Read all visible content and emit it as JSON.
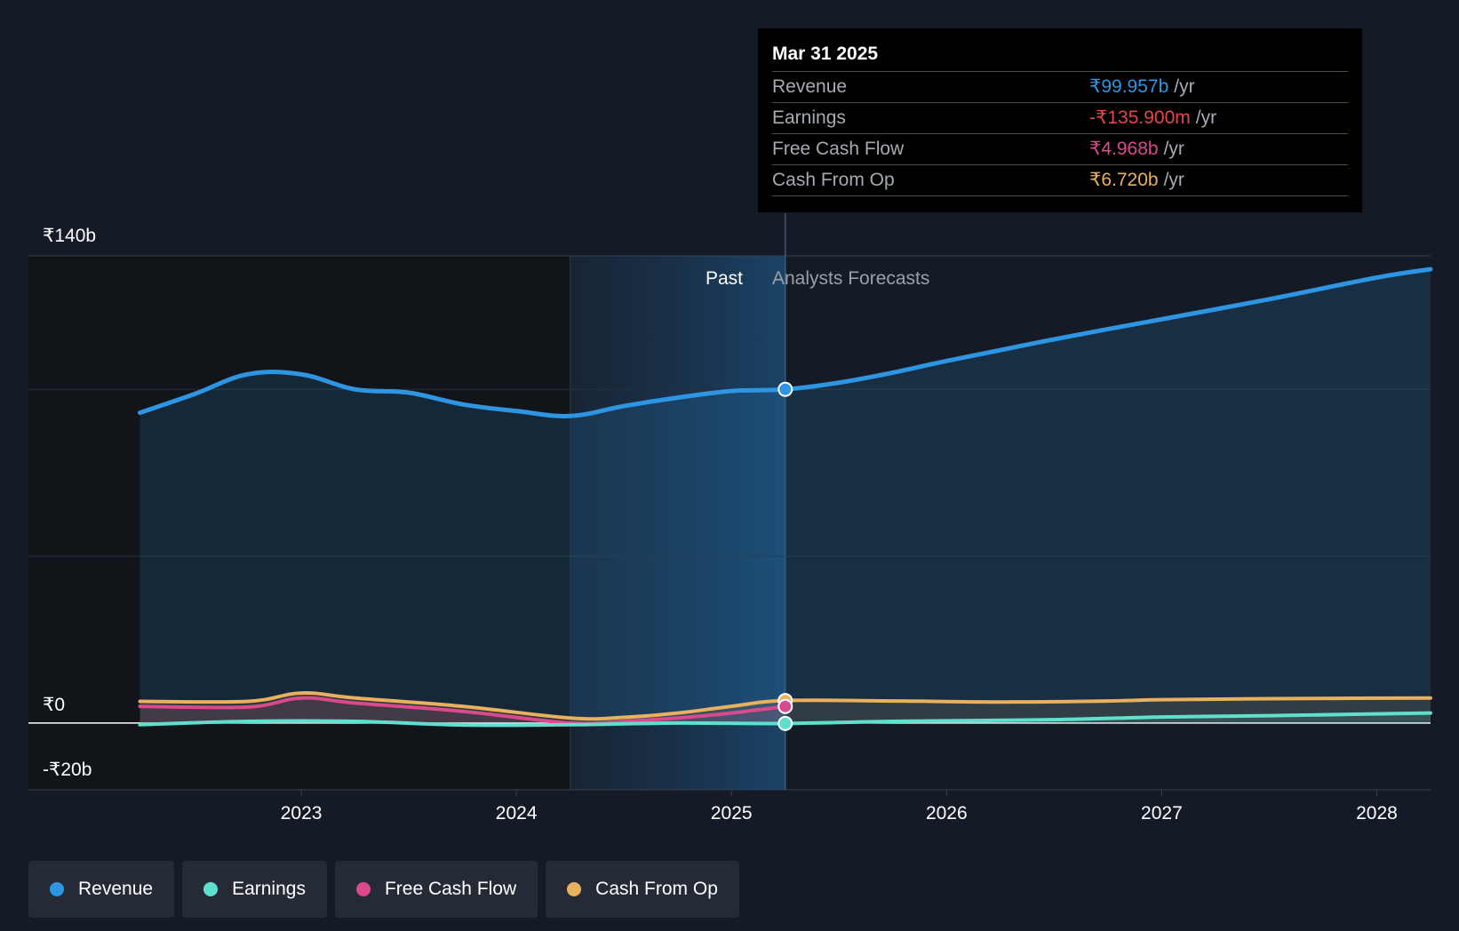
{
  "tooltip": {
    "date": "Mar 31 2025",
    "unit": "/yr",
    "rows": [
      {
        "label": "Revenue",
        "value": "₹99.957b",
        "color": "#2e95e3"
      },
      {
        "label": "Earnings",
        "value": "-₹135.900m",
        "color": "#e8444e"
      },
      {
        "label": "Free Cash Flow",
        "value": "₹4.968b",
        "color": "#d94a8c"
      },
      {
        "label": "Cash From Op",
        "value": "₹6.720b",
        "color": "#e9b05d"
      }
    ]
  },
  "labels": {
    "past": "Past",
    "forecast": "Analysts Forecasts"
  },
  "legend": [
    {
      "label": "Revenue",
      "color": "#2e95e3"
    },
    {
      "label": "Earnings",
      "color": "#5fe0cf"
    },
    {
      "label": "Free Cash Flow",
      "color": "#d94a8c"
    },
    {
      "label": "Cash From Op",
      "color": "#e9b05d"
    }
  ],
  "chart_data": {
    "type": "line",
    "xlim": [
      2022.0,
      2028.25
    ],
    "ylim": [
      -20,
      140
    ],
    "y_ticks": [
      {
        "value": 140,
        "label": "₹140b"
      },
      {
        "value": 0,
        "label": "₹0"
      },
      {
        "value": -20,
        "label": "-₹20b"
      }
    ],
    "x_ticks": [
      {
        "value": 2023,
        "label": "2023"
      },
      {
        "value": 2024,
        "label": "2024"
      },
      {
        "value": 2025,
        "label": "2025"
      },
      {
        "value": 2026,
        "label": "2026"
      },
      {
        "value": 2027,
        "label": "2027"
      },
      {
        "value": 2028,
        "label": "2028"
      }
    ],
    "gridlines": [
      140,
      100,
      50
    ],
    "past_start": 2024.25,
    "divider": 2025.25,
    "series": [
      {
        "name": "Revenue",
        "color": "#2e95e3",
        "points": [
          [
            2022.25,
            93
          ],
          [
            2022.5,
            98.5
          ],
          [
            2022.75,
            104.5
          ],
          [
            2023.0,
            104.5
          ],
          [
            2023.25,
            100
          ],
          [
            2023.5,
            99
          ],
          [
            2023.75,
            95.5
          ],
          [
            2024.0,
            93.5
          ],
          [
            2024.25,
            92
          ],
          [
            2024.5,
            95
          ],
          [
            2024.75,
            97.5
          ],
          [
            2025.0,
            99.5
          ],
          [
            2025.25,
            100
          ],
          [
            2025.5,
            102
          ],
          [
            2025.75,
            105
          ],
          [
            2026.0,
            108.5
          ],
          [
            2026.5,
            115
          ],
          [
            2027.0,
            121
          ],
          [
            2027.5,
            127
          ],
          [
            2028.0,
            133.5
          ],
          [
            2028.25,
            136
          ]
        ]
      },
      {
        "name": "Earnings",
        "color": "#5fe0cf",
        "points": [
          [
            2022.25,
            -0.5
          ],
          [
            2022.75,
            0.5
          ],
          [
            2023.25,
            0.5
          ],
          [
            2023.75,
            -0.6
          ],
          [
            2024.25,
            -0.5
          ],
          [
            2024.75,
            0
          ],
          [
            2025.25,
            -0.14
          ],
          [
            2025.75,
            0.5
          ],
          [
            2026.5,
            1
          ],
          [
            2027.0,
            1.8
          ],
          [
            2027.5,
            2.2
          ],
          [
            2028.25,
            3
          ]
        ]
      },
      {
        "name": "Free Cash Flow",
        "color": "#d94a8c",
        "points": [
          [
            2022.25,
            5
          ],
          [
            2022.75,
            4.8
          ],
          [
            2023.0,
            7.5
          ],
          [
            2023.25,
            6
          ],
          [
            2023.75,
            3.5
          ],
          [
            2024.25,
            0
          ],
          [
            2024.5,
            0.5
          ],
          [
            2024.75,
            1.5
          ],
          [
            2025.0,
            3
          ],
          [
            2025.25,
            4.97
          ]
        ]
      },
      {
        "name": "Cash From Op",
        "color": "#e9b05d",
        "points": [
          [
            2022.25,
            6.5
          ],
          [
            2022.75,
            6.5
          ],
          [
            2023.0,
            9
          ],
          [
            2023.25,
            7.5
          ],
          [
            2023.75,
            5
          ],
          [
            2024.25,
            1.5
          ],
          [
            2024.5,
            1.7
          ],
          [
            2024.75,
            3
          ],
          [
            2025.0,
            5
          ],
          [
            2025.25,
            6.72
          ],
          [
            2025.75,
            6.6
          ],
          [
            2026.25,
            6.3
          ],
          [
            2026.75,
            6.6
          ],
          [
            2027.0,
            7
          ],
          [
            2027.5,
            7.3
          ],
          [
            2028.25,
            7.5
          ]
        ]
      }
    ]
  }
}
